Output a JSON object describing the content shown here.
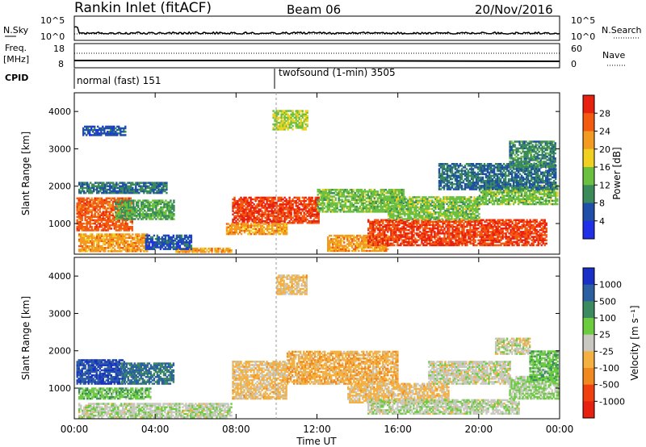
{
  "header": {
    "station": "Rankin Inlet (fitACF)",
    "beam": "Beam 06",
    "date": "20/Nov/2016"
  },
  "noise_panel": {
    "left_label": "N.Sky",
    "right_label": "N.Search",
    "left_ticks": [
      "10^5",
      "10^0"
    ],
    "right_ticks": [
      "10^5",
      "10^0"
    ]
  },
  "freq_panel": {
    "left_label_1": "Freq.",
    "left_label_2": "[MHz]",
    "left_ticks": [
      "18",
      "8"
    ],
    "right_label": "Nave",
    "right_ticks": [
      "60",
      "0"
    ]
  },
  "cpid_panel": {
    "label": "CPID",
    "programs": [
      "normal (fast) 151",
      "twofsound (1-min) 3505"
    ]
  },
  "colors": {
    "power": [
      "#2030e8",
      "#1f4fa8",
      "#3a8a5a",
      "#6cc040",
      "#f0d020",
      "#f39a20",
      "#f35a10",
      "#e82010"
    ],
    "velocity": [
      "#1a2fc8",
      "#2c5fa0",
      "#3c8a60",
      "#6ccc40",
      "#c8c8c0",
      "#f4b040",
      "#f08a20",
      "#f04010",
      "#e82010"
    ]
  },
  "chart_data": [
    {
      "type": "heatmap",
      "title": "",
      "xlabel": "",
      "ylabel": "Slant Range [km]",
      "xlim": [
        0,
        24
      ],
      "ylim": [
        180,
        4500
      ],
      "x_ticks": [
        "00:00",
        "04:00",
        "08:00",
        "12:00",
        "16:00",
        "20:00",
        "00:00"
      ],
      "y_ticks": [
        "1000",
        "2000",
        "3000",
        "4000"
      ],
      "colorbar": {
        "label": "Power [dB]",
        "ticks": [
          "4",
          "8",
          "12",
          "16",
          "20",
          "24",
          "28"
        ],
        "range": [
          0,
          32
        ]
      },
      "regions": [
        {
          "t": [
            0.1,
            2.9
          ],
          "r": [
            800,
            1700
          ],
          "v": 26
        },
        {
          "t": [
            2.0,
            4.9
          ],
          "r": [
            1100,
            1600
          ],
          "v": 12
        },
        {
          "t": [
            0.2,
            4.6
          ],
          "r": [
            1800,
            2100
          ],
          "v": 8
        },
        {
          "t": [
            0.2,
            3.6
          ],
          "r": [
            240,
            700
          ],
          "v": 22
        },
        {
          "t": [
            5.0,
            7.8
          ],
          "r": [
            220,
            320
          ],
          "v": 22
        },
        {
          "t": [
            3.5,
            5.8
          ],
          "r": [
            300,
            700
          ],
          "v": 6
        },
        {
          "t": [
            7.8,
            12.1
          ],
          "r": [
            1000,
            1700
          ],
          "v": 28
        },
        {
          "t": [
            7.5,
            10.5
          ],
          "r": [
            700,
            1000
          ],
          "v": 22
        },
        {
          "t": [
            12.0,
            16.3
          ],
          "r": [
            1300,
            1900
          ],
          "v": 14
        },
        {
          "t": [
            12.5,
            15.5
          ],
          "r": [
            250,
            700
          ],
          "v": 22
        },
        {
          "t": [
            14.5,
            23.3
          ],
          "r": [
            400,
            1100
          ],
          "v": 28
        },
        {
          "t": [
            15.5,
            20.0
          ],
          "r": [
            1100,
            1700
          ],
          "v": 14
        },
        {
          "t": [
            20.0,
            23.9
          ],
          "r": [
            1500,
            2000
          ],
          "v": 14
        },
        {
          "t": [
            18.0,
            23.8
          ],
          "r": [
            1900,
            2600
          ],
          "v": 8
        },
        {
          "t": [
            21.5,
            23.8
          ],
          "r": [
            2500,
            3200
          ],
          "v": 10
        },
        {
          "t": [
            9.8,
            11.5
          ],
          "r": [
            3500,
            4000
          ],
          "v": 16
        },
        {
          "t": [
            0.4,
            2.5
          ],
          "r": [
            3350,
            3600
          ],
          "v": 6
        }
      ]
    },
    {
      "type": "heatmap",
      "title": "",
      "xlabel": "Time UT",
      "ylabel": "Slant Range [km]",
      "xlim": [
        0,
        24
      ],
      "ylim": [
        180,
        4500
      ],
      "x_ticks": [
        "00:00",
        "04:00",
        "08:00",
        "12:00",
        "16:00",
        "20:00",
        "00:00"
      ],
      "y_ticks": [
        "1000",
        "2000",
        "3000",
        "4000"
      ],
      "colorbar": {
        "label": "Velocity [m s⁻¹]",
        "ticks": [
          "1000",
          "500",
          "100",
          "25",
          "-25",
          "-100",
          "-500",
          "-1000"
        ],
        "range": [
          -1200,
          1200
        ]
      },
      "regions": [
        {
          "t": [
            0.1,
            2.5
          ],
          "r": [
            1100,
            1750
          ],
          "v": 900
        },
        {
          "t": [
            2.3,
            4.9
          ],
          "r": [
            1100,
            1650
          ],
          "v": 700
        },
        {
          "t": [
            0.2,
            3.8
          ],
          "r": [
            700,
            1000
          ],
          "v": 300
        },
        {
          "t": [
            0.2,
            7.8
          ],
          "r": [
            200,
            600
          ],
          "v": 60
        },
        {
          "t": [
            7.8,
            10.5
          ],
          "r": [
            700,
            1700
          ],
          "v": -200
        },
        {
          "t": [
            10.5,
            16.0
          ],
          "r": [
            1100,
            2000
          ],
          "v": -300
        },
        {
          "t": [
            13.5,
            18.5
          ],
          "r": [
            600,
            1100
          ],
          "v": -200
        },
        {
          "t": [
            14.5,
            22.0
          ],
          "r": [
            300,
            700
          ],
          "v": 60
        },
        {
          "t": [
            17.5,
            21.5
          ],
          "r": [
            1100,
            1700
          ],
          "v": 0
        },
        {
          "t": [
            20.8,
            22.5
          ],
          "r": [
            1900,
            2350
          ],
          "v": 0
        },
        {
          "t": [
            21.5,
            23.9
          ],
          "r": [
            700,
            1300
          ],
          "v": 150
        },
        {
          "t": [
            22.5,
            23.9
          ],
          "r": [
            1200,
            2000
          ],
          "v": 300
        },
        {
          "t": [
            10.0,
            11.5
          ],
          "r": [
            3500,
            4000
          ],
          "v": -200
        }
      ]
    }
  ]
}
